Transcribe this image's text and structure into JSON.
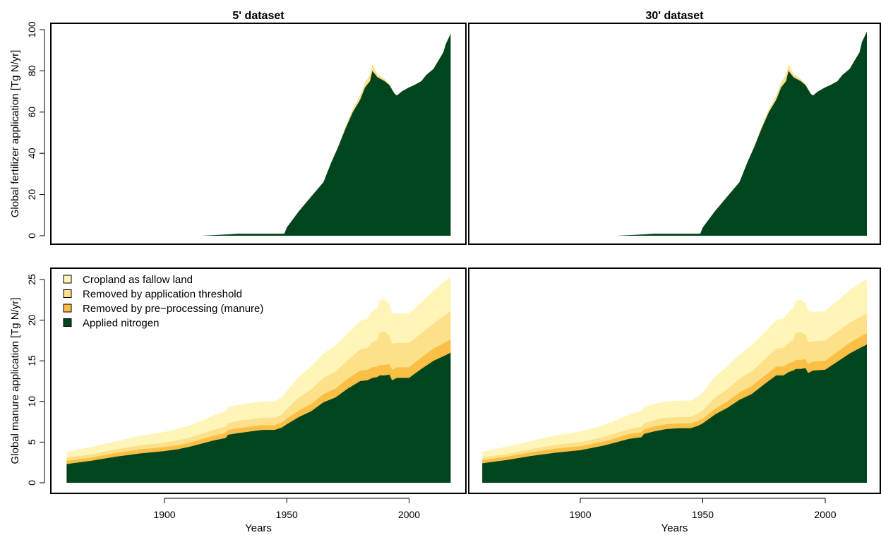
{
  "legend": [
    {
      "label": "Cropland as fallow land",
      "color": "#fff5b8"
    },
    {
      "label": "Removed by application threshold",
      "color": "#fde08a"
    },
    {
      "label": "Removed by pre−processing (manure)",
      "color": "#fbbf45"
    },
    {
      "label": "Applied nitrogen",
      "color": "#00451e"
    }
  ],
  "chart_data": [
    {
      "type": "area",
      "title": "5' dataset",
      "xlabel": "",
      "ylabel": "Global fertilizer application [Tg N/yr]",
      "xlim": [
        1860,
        2018
      ],
      "ylim": [
        0,
        100
      ],
      "xticks": [],
      "yticks": [
        0,
        20,
        40,
        60,
        80,
        100
      ],
      "x": [
        1915,
        1920,
        1925,
        1930,
        1935,
        1940,
        1945,
        1949,
        1950,
        1955,
        1960,
        1965,
        1968,
        1971,
        1974,
        1977,
        1980,
        1982,
        1984,
        1985,
        1987,
        1990,
        1992,
        1994,
        1995,
        1997,
        2000,
        2002,
        2005,
        2007,
        2010,
        2012,
        2014,
        2015,
        2017
      ],
      "series": [
        {
          "name": "Applied nitrogen",
          "values": [
            0,
            0.3,
            0.6,
            1,
            1,
            1,
            1,
            1,
            4,
            12,
            19,
            26,
            35,
            43,
            52,
            60,
            66,
            72,
            75,
            80,
            77,
            75,
            73,
            69,
            68,
            70,
            72,
            73,
            75,
            78,
            81,
            85,
            89,
            93,
            98
          ]
        },
        {
          "name": "Removed by application threshold",
          "values": [
            0,
            0,
            0,
            0,
            0,
            0,
            0,
            0,
            0,
            0,
            0,
            0,
            0,
            0.5,
            1,
            1.5,
            2,
            2.5,
            3,
            3,
            1.5,
            1,
            0.5,
            0,
            0,
            0,
            0,
            0,
            0,
            0,
            0,
            0,
            0,
            0,
            0
          ]
        }
      ]
    },
    {
      "type": "area",
      "title": "30' dataset",
      "xlabel": "",
      "ylabel": "",
      "xlim": [
        1860,
        2018
      ],
      "ylim": [
        0,
        100
      ],
      "xticks": [],
      "yticks": [],
      "x": [
        1915,
        1920,
        1925,
        1930,
        1935,
        1940,
        1945,
        1949,
        1950,
        1955,
        1960,
        1965,
        1968,
        1971,
        1974,
        1977,
        1980,
        1982,
        1984,
        1985,
        1987,
        1990,
        1992,
        1994,
        1995,
        1997,
        2000,
        2002,
        2005,
        2007,
        2010,
        2012,
        2014,
        2015,
        2017
      ],
      "series": [
        {
          "name": "Applied nitrogen",
          "values": [
            0,
            0.3,
            0.6,
            1,
            1,
            1,
            1,
            1,
            4,
            12,
            19,
            26,
            35,
            43,
            52,
            60,
            66,
            72,
            75,
            80,
            77,
            75,
            73,
            69,
            68,
            70,
            72,
            73,
            75,
            78,
            81,
            85,
            89,
            94,
            99
          ]
        },
        {
          "name": "Removed by application threshold",
          "values": [
            0,
            0,
            0,
            0,
            0,
            0,
            0,
            0,
            0,
            0,
            0,
            0,
            0,
            0.5,
            1,
            1.5,
            2,
            2.5,
            3,
            3,
            1.5,
            1,
            0.5,
            0,
            0,
            0,
            0,
            0,
            0,
            0,
            0,
            0,
            0,
            0,
            0
          ]
        }
      ]
    },
    {
      "type": "area",
      "title": "",
      "xlabel": "Years",
      "ylabel": "Global manure application [Tg N/yr]",
      "xlim": [
        1860,
        2018
      ],
      "ylim": [
        0,
        25
      ],
      "xticks": [
        1900,
        1950,
        2000
      ],
      "yticks": [
        0,
        5,
        10,
        15,
        20,
        25
      ],
      "x": [
        1860,
        1870,
        1880,
        1890,
        1900,
        1905,
        1910,
        1915,
        1920,
        1925,
        1926,
        1930,
        1935,
        1940,
        1945,
        1948,
        1950,
        1955,
        1960,
        1965,
        1970,
        1975,
        1980,
        1983,
        1985,
        1987,
        1988,
        1990,
        1992,
        1993,
        1995,
        2000,
        2005,
        2010,
        2015,
        2017
      ],
      "series": [
        {
          "name": "Applied nitrogen",
          "values": [
            2.3,
            2.7,
            3.2,
            3.6,
            3.9,
            4.1,
            4.4,
            4.8,
            5.2,
            5.5,
            5.9,
            6.1,
            6.3,
            6.5,
            6.5,
            6.8,
            7.2,
            8.1,
            8.8,
            9.9,
            10.5,
            11.6,
            12.5,
            12.6,
            12.9,
            13.0,
            13.2,
            13.2,
            13.3,
            12.6,
            12.9,
            12.9,
            14.0,
            15.0,
            15.7,
            16.0
          ]
        },
        {
          "name": "Removed by pre−processing (manure)",
          "values": [
            0.4,
            0.4,
            0.45,
            0.5,
            0.5,
            0.5,
            0.5,
            0.55,
            0.6,
            0.6,
            0.6,
            0.6,
            0.6,
            0.6,
            0.6,
            0.6,
            0.7,
            0.8,
            0.9,
            1.0,
            1.1,
            1.2,
            1.3,
            1.3,
            1.3,
            1.3,
            1.3,
            1.3,
            1.3,
            1.3,
            1.3,
            1.3,
            1.4,
            1.5,
            1.6,
            1.6
          ]
        },
        {
          "name": "Removed by application threshold",
          "values": [
            0.4,
            0.4,
            0.45,
            0.5,
            0.55,
            0.6,
            0.6,
            0.65,
            0.7,
            0.8,
            0.8,
            0.9,
            0.9,
            0.9,
            0.9,
            1.0,
            1.2,
            1.6,
            1.8,
            2.0,
            2.1,
            2.3,
            2.6,
            2.7,
            3.1,
            3.3,
            4.0,
            4.1,
            3.5,
            3.2,
            3.0,
            3.0,
            3.0,
            3.1,
            3.4,
            3.5
          ]
        },
        {
          "name": "Cropland as fallow land",
          "values": [
            0.7,
            0.9,
            1.0,
            1.2,
            1.3,
            1.4,
            1.5,
            1.6,
            1.8,
            1.9,
            2.0,
            2.0,
            2.0,
            2.0,
            2.0,
            2.1,
            2.2,
            2.6,
            2.8,
            3.0,
            3.2,
            3.3,
            3.5,
            3.6,
            3.8,
            3.9,
            4.0,
            4.0,
            3.9,
            3.8,
            3.6,
            3.6,
            3.8,
            4.0,
            4.2,
            4.2
          ]
        }
      ]
    },
    {
      "type": "area",
      "title": "",
      "xlabel": "Years",
      "ylabel": "",
      "xlim": [
        1860,
        2018
      ],
      "ylim": [
        0,
        25
      ],
      "xticks": [
        1900,
        1950,
        2000
      ],
      "yticks": [],
      "x": [
        1860,
        1870,
        1880,
        1890,
        1900,
        1905,
        1910,
        1915,
        1920,
        1925,
        1926,
        1930,
        1935,
        1940,
        1945,
        1948,
        1950,
        1955,
        1960,
        1965,
        1970,
        1975,
        1980,
        1983,
        1985,
        1987,
        1988,
        1990,
        1992,
        1993,
        1995,
        2000,
        2005,
        2010,
        2015,
        2017
      ],
      "series": [
        {
          "name": "Applied nitrogen",
          "values": [
            2.4,
            2.8,
            3.3,
            3.7,
            4.0,
            4.3,
            4.6,
            5.0,
            5.4,
            5.6,
            6.0,
            6.3,
            6.6,
            6.7,
            6.7,
            7.0,
            7.3,
            8.4,
            9.2,
            10.2,
            10.9,
            12.1,
            13.2,
            13.2,
            13.6,
            13.8,
            14.0,
            14.0,
            14.1,
            13.5,
            13.8,
            13.9,
            14.9,
            15.9,
            16.7,
            17.0
          ]
        },
        {
          "name": "Removed by pre−processing (manure)",
          "values": [
            0.4,
            0.4,
            0.45,
            0.5,
            0.5,
            0.5,
            0.5,
            0.55,
            0.6,
            0.6,
            0.6,
            0.6,
            0.6,
            0.6,
            0.6,
            0.6,
            0.6,
            0.7,
            0.8,
            0.9,
            1.0,
            1.0,
            1.1,
            1.1,
            1.1,
            1.1,
            1.1,
            1.1,
            1.1,
            1.1,
            1.1,
            1.1,
            1.2,
            1.3,
            1.4,
            1.4
          ]
        },
        {
          "name": "Removed by application threshold",
          "values": [
            0.3,
            0.35,
            0.4,
            0.45,
            0.5,
            0.5,
            0.55,
            0.6,
            0.6,
            0.7,
            0.7,
            0.8,
            0.8,
            0.8,
            0.8,
            0.9,
            1.0,
            1.4,
            1.5,
            1.7,
            1.8,
            2.0,
            2.2,
            2.3,
            2.5,
            2.7,
            3.3,
            3.4,
            3.0,
            2.7,
            2.5,
            2.5,
            2.5,
            2.5,
            2.4,
            2.4
          ]
        },
        {
          "name": "Cropland as fallow land",
          "values": [
            0.7,
            0.9,
            1.0,
            1.2,
            1.3,
            1.4,
            1.5,
            1.6,
            1.8,
            1.9,
            2.0,
            2.0,
            2.0,
            2.0,
            2.0,
            2.1,
            2.2,
            2.6,
            2.8,
            3.0,
            3.2,
            3.3,
            3.5,
            3.6,
            3.8,
            3.9,
            4.0,
            4.0,
            3.9,
            3.8,
            3.6,
            3.6,
            3.8,
            4.0,
            4.2,
            4.2
          ]
        }
      ]
    }
  ]
}
